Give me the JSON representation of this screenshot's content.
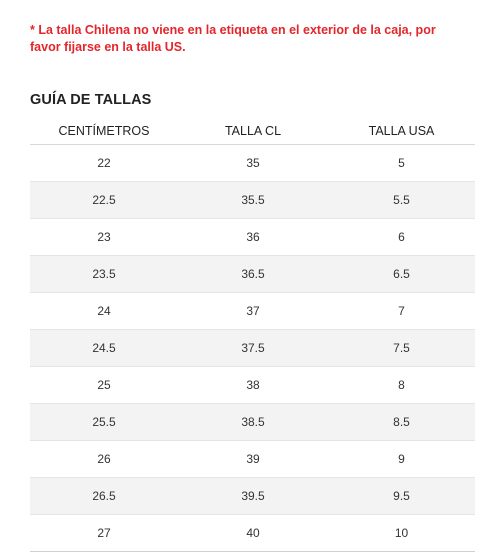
{
  "notice": {
    "line1": "* La talla Chilena no viene en la etiqueta en el exterior de la caja, por",
    "line2": "favor fijarse en la talla US."
  },
  "title": "GUÍA DE TALLAS",
  "table": {
    "headers": [
      "CENTÍMETROS",
      "TALLA CL",
      "TALLA USA"
    ],
    "rows": [
      [
        "22",
        "35",
        "5"
      ],
      [
        "22.5",
        "35.5",
        "5.5"
      ],
      [
        "23",
        "36",
        "6"
      ],
      [
        "23.5",
        "36.5",
        "6.5"
      ],
      [
        "24",
        "37",
        "7"
      ],
      [
        "24.5",
        "37.5",
        "7.5"
      ],
      [
        "25",
        "38",
        "8"
      ],
      [
        "25.5",
        "38.5",
        "8.5"
      ],
      [
        "26",
        "39",
        "9"
      ],
      [
        "26.5",
        "39.5",
        "9.5"
      ],
      [
        "27",
        "40",
        "10"
      ]
    ]
  }
}
